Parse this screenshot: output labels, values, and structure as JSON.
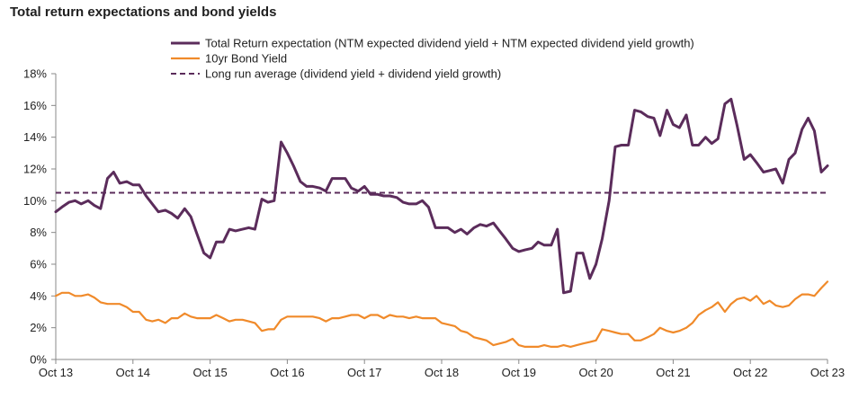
{
  "chart_data": {
    "type": "line",
    "title": "Total return expectations and bond yields",
    "ylim": [
      0,
      18
    ],
    "yticks": [
      "0%",
      "2%",
      "4%",
      "6%",
      "8%",
      "10%",
      "12%",
      "14%",
      "16%",
      "18%"
    ],
    "xticks": [
      "Oct 13",
      "Oct 14",
      "Oct 15",
      "Oct 16",
      "Oct 17",
      "Oct 18",
      "Oct 19",
      "Oct 20",
      "Oct 21",
      "Oct 22",
      "Oct 23"
    ],
    "xlim": [
      2013.75,
      2023.75
    ],
    "grid": false,
    "legend_position": "top",
    "series": [
      {
        "name": "Total Return expectation (NTM expected dividend yield + NTM expected dividend yield growth)",
        "color": "#5b2c5b",
        "style": "solid",
        "x": [
          2013.75,
          2013.83,
          2013.92,
          2014.0,
          2014.08,
          2014.17,
          2014.25,
          2014.33,
          2014.42,
          2014.5,
          2014.58,
          2014.67,
          2014.75,
          2014.83,
          2014.92,
          2015.0,
          2015.08,
          2015.17,
          2015.25,
          2015.33,
          2015.42,
          2015.5,
          2015.58,
          2015.67,
          2015.75,
          2015.83,
          2015.92,
          2016.0,
          2016.08,
          2016.17,
          2016.25,
          2016.33,
          2016.42,
          2016.5,
          2016.58,
          2016.67,
          2016.75,
          2016.83,
          2016.92,
          2017.0,
          2017.08,
          2017.17,
          2017.25,
          2017.33,
          2017.42,
          2017.5,
          2017.58,
          2017.67,
          2017.75,
          2017.83,
          2017.92,
          2018.0,
          2018.08,
          2018.17,
          2018.25,
          2018.33,
          2018.42,
          2018.5,
          2018.58,
          2018.67,
          2018.75,
          2018.83,
          2018.92,
          2019.0,
          2019.08,
          2019.17,
          2019.25,
          2019.33,
          2019.42,
          2019.5,
          2019.58,
          2019.67,
          2019.75,
          2019.83,
          2019.92,
          2020.0,
          2020.08,
          2020.17,
          2020.25,
          2020.33,
          2020.42,
          2020.5,
          2020.58,
          2020.67,
          2020.75,
          2020.83,
          2020.92,
          2021.0,
          2021.08,
          2021.17,
          2021.25,
          2021.33,
          2021.42,
          2021.5,
          2021.58,
          2021.67,
          2021.75,
          2021.83,
          2021.92,
          2022.0,
          2022.08,
          2022.17,
          2022.25,
          2022.33,
          2022.42,
          2022.5,
          2022.58,
          2022.67,
          2022.75,
          2022.83,
          2022.92,
          2023.0,
          2023.08,
          2023.17,
          2023.25,
          2023.33,
          2023.42,
          2023.5,
          2023.58,
          2023.67,
          2023.75
        ],
        "values": [
          9.3,
          9.6,
          9.9,
          10.0,
          9.8,
          10.0,
          9.7,
          9.5,
          11.4,
          11.8,
          11.1,
          11.2,
          11.0,
          11.0,
          10.3,
          9.8,
          9.3,
          9.4,
          9.2,
          8.9,
          9.5,
          9.0,
          7.9,
          6.7,
          6.4,
          7.4,
          7.4,
          8.2,
          8.1,
          8.2,
          8.3,
          8.2,
          10.1,
          9.9,
          10.0,
          13.7,
          13.0,
          12.2,
          11.2,
          10.9,
          10.9,
          10.8,
          10.6,
          11.4,
          11.4,
          11.4,
          10.8,
          10.6,
          10.9,
          10.4,
          10.4,
          10.3,
          10.3,
          10.2,
          9.9,
          9.8,
          9.8,
          10.0,
          9.6,
          8.3,
          8.3,
          8.3,
          8.0,
          8.2,
          7.9,
          8.3,
          8.5,
          8.4,
          8.6,
          8.1,
          7.6,
          7.0,
          6.8,
          6.9,
          7.0,
          7.4,
          7.2,
          7.2,
          8.2,
          4.2,
          4.3,
          6.7,
          6.7,
          5.1,
          6.0,
          7.6,
          10.0,
          13.4,
          13.5,
          13.5,
          15.7,
          15.6,
          15.3,
          15.2,
          14.1,
          15.7,
          14.8,
          14.6,
          15.4,
          13.5,
          13.5,
          14.0,
          13.6,
          13.9,
          16.1,
          16.4,
          14.7,
          12.6,
          12.9,
          12.4,
          11.8,
          11.9,
          12.0,
          11.1,
          12.6,
          13.0,
          14.5,
          15.2,
          14.4,
          11.8,
          12.2
        ]
      },
      {
        "name": "10yr Bond Yield",
        "color": "#f08a2a",
        "style": "solid",
        "x": [
          2013.75,
          2013.83,
          2013.92,
          2014.0,
          2014.08,
          2014.17,
          2014.25,
          2014.33,
          2014.42,
          2014.5,
          2014.58,
          2014.67,
          2014.75,
          2014.83,
          2014.92,
          2015.0,
          2015.08,
          2015.17,
          2015.25,
          2015.33,
          2015.42,
          2015.5,
          2015.58,
          2015.67,
          2015.75,
          2015.83,
          2015.92,
          2016.0,
          2016.08,
          2016.17,
          2016.25,
          2016.33,
          2016.42,
          2016.5,
          2016.58,
          2016.67,
          2016.75,
          2016.83,
          2016.92,
          2017.0,
          2017.08,
          2017.17,
          2017.25,
          2017.33,
          2017.42,
          2017.5,
          2017.58,
          2017.67,
          2017.75,
          2017.83,
          2017.92,
          2018.0,
          2018.08,
          2018.17,
          2018.25,
          2018.33,
          2018.42,
          2018.5,
          2018.58,
          2018.67,
          2018.75,
          2018.83,
          2018.92,
          2019.0,
          2019.08,
          2019.17,
          2019.25,
          2019.33,
          2019.42,
          2019.5,
          2019.58,
          2019.67,
          2019.75,
          2019.83,
          2019.92,
          2020.0,
          2020.08,
          2020.17,
          2020.25,
          2020.33,
          2020.42,
          2020.5,
          2020.58,
          2020.67,
          2020.75,
          2020.83,
          2020.92,
          2021.0,
          2021.08,
          2021.17,
          2021.25,
          2021.33,
          2021.42,
          2021.5,
          2021.58,
          2021.67,
          2021.75,
          2021.83,
          2021.92,
          2022.0,
          2022.08,
          2022.17,
          2022.25,
          2022.33,
          2022.42,
          2022.5,
          2022.58,
          2022.67,
          2022.75,
          2022.83,
          2022.92,
          2023.0,
          2023.08,
          2023.17,
          2023.25,
          2023.33,
          2023.42,
          2023.5,
          2023.58,
          2023.67,
          2023.75
        ],
        "values": [
          4.0,
          4.2,
          4.2,
          4.0,
          4.0,
          4.1,
          3.9,
          3.6,
          3.5,
          3.5,
          3.5,
          3.3,
          3.0,
          3.0,
          2.5,
          2.4,
          2.5,
          2.3,
          2.6,
          2.6,
          2.9,
          2.7,
          2.6,
          2.6,
          2.6,
          2.8,
          2.6,
          2.4,
          2.5,
          2.5,
          2.4,
          2.3,
          1.8,
          1.9,
          1.9,
          2.5,
          2.7,
          2.7,
          2.7,
          2.7,
          2.7,
          2.6,
          2.4,
          2.6,
          2.6,
          2.7,
          2.8,
          2.8,
          2.6,
          2.8,
          2.8,
          2.6,
          2.8,
          2.7,
          2.7,
          2.6,
          2.7,
          2.6,
          2.6,
          2.6,
          2.3,
          2.2,
          2.1,
          1.8,
          1.7,
          1.4,
          1.3,
          1.2,
          0.9,
          1.0,
          1.1,
          1.3,
          0.9,
          0.8,
          0.8,
          0.8,
          0.9,
          0.8,
          0.8,
          0.9,
          0.8,
          0.9,
          1.0,
          1.1,
          1.2,
          1.9,
          1.8,
          1.7,
          1.6,
          1.6,
          1.2,
          1.2,
          1.4,
          1.6,
          2.0,
          1.8,
          1.7,
          1.8,
          2.0,
          2.3,
          2.8,
          3.1,
          3.3,
          3.6,
          3.0,
          3.5,
          3.8,
          3.9,
          3.7,
          4.0,
          3.5,
          3.7,
          3.4,
          3.3,
          3.4,
          3.8,
          4.1,
          4.1,
          4.0,
          4.5,
          4.9
        ]
      },
      {
        "name": "Long run average (dividend yield + dividend yield growth)",
        "color": "#5b2c5b",
        "style": "dashed",
        "x": [
          2013.75,
          2023.75
        ],
        "values": [
          10.5,
          10.5
        ]
      }
    ]
  }
}
